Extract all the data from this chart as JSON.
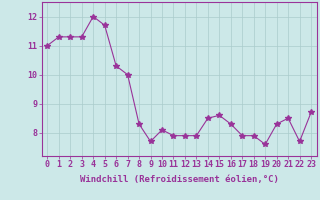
{
  "x": [
    0,
    1,
    2,
    3,
    4,
    5,
    6,
    7,
    8,
    9,
    10,
    11,
    12,
    13,
    14,
    15,
    16,
    17,
    18,
    19,
    20,
    21,
    22,
    23
  ],
  "y": [
    11.0,
    11.3,
    11.3,
    11.3,
    12.0,
    11.7,
    10.3,
    10.0,
    8.3,
    7.7,
    8.1,
    7.9,
    7.9,
    7.9,
    8.5,
    8.6,
    8.3,
    7.9,
    7.9,
    7.6,
    8.3,
    8.5,
    7.7,
    8.7
  ],
  "line_color": "#993399",
  "marker": "*",
  "markersize": 4,
  "linewidth": 0.8,
  "background_color": "#cce8e8",
  "grid_color": "#aacccc",
  "axis_color": "#993399",
  "xlabel": "Windchill (Refroidissement éolien,°C)",
  "xlabel_fontsize": 6.5,
  "tick_label_color": "#993399",
  "tick_fontsize": 6.0,
  "ylim": [
    7.2,
    12.5
  ],
  "yticks": [
    8,
    9,
    10,
    11,
    12
  ],
  "xlim": [
    -0.5,
    23.5
  ],
  "xticks": [
    0,
    1,
    2,
    3,
    4,
    5,
    6,
    7,
    8,
    9,
    10,
    11,
    12,
    13,
    14,
    15,
    16,
    17,
    18,
    19,
    20,
    21,
    22,
    23
  ]
}
